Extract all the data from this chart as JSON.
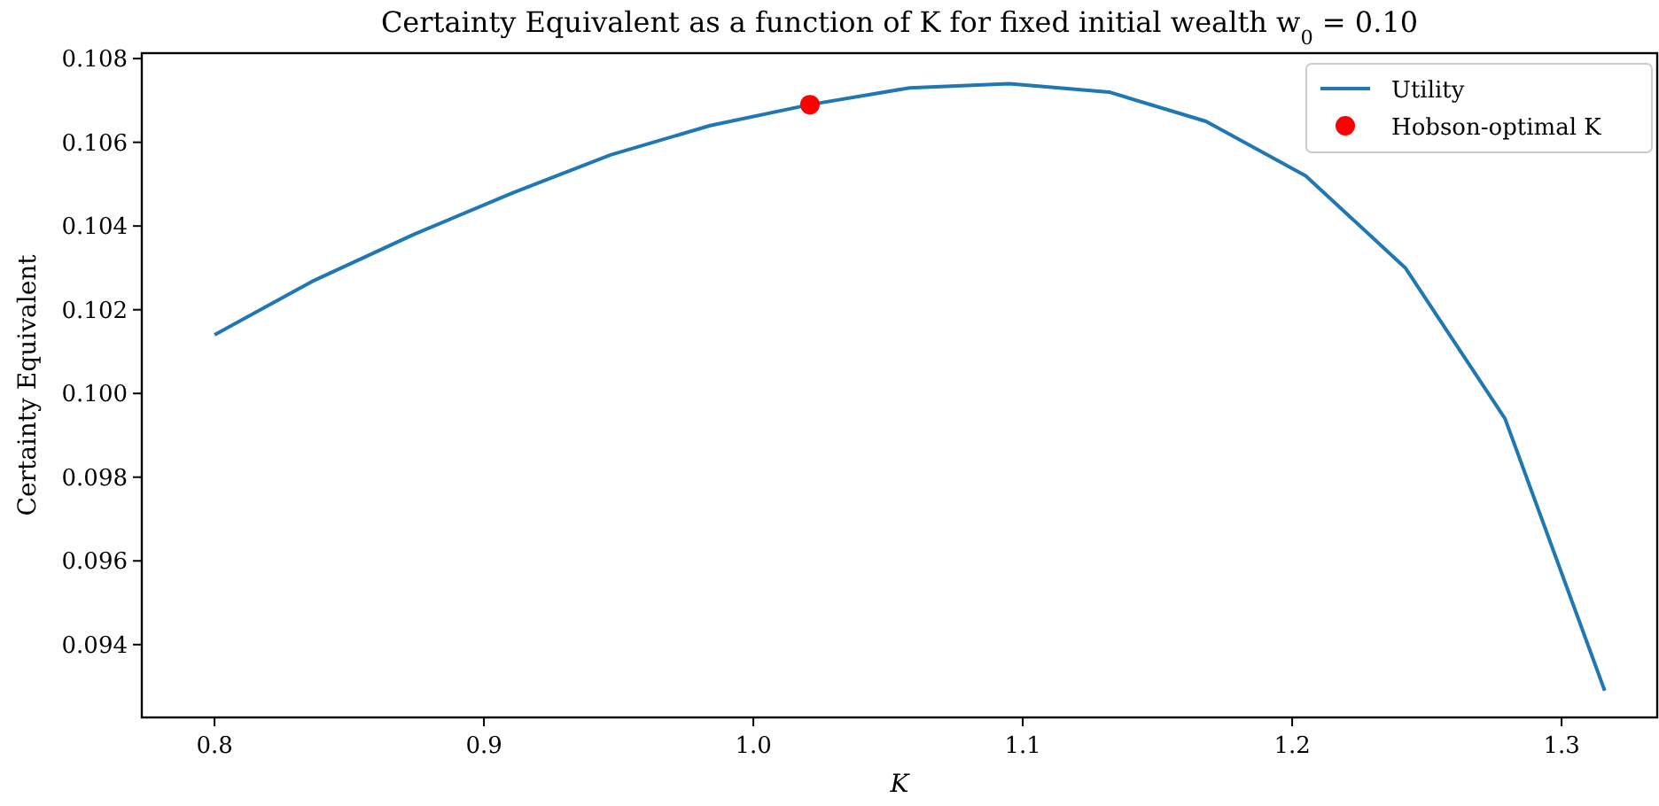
{
  "chart_data": {
    "type": "line",
    "title": "Certainty Equivalent as a function of K for fixed initial wealth w$_{0}$ = 0.10",
    "xlabel": "K",
    "ylabel": "Certainty Equivalent",
    "xlim": [
      0.773,
      1.3355
    ],
    "xticks": [
      0.8,
      0.9,
      {
        "value": 1.0,
        "label": "1.0"
      },
      1.1,
      1.2,
      1.3
    ],
    "ylim": [
      0.09226,
      0.10813
    ],
    "yticks": [
      0.094,
      0.096,
      0.098,
      {
        "value": 0.1,
        "label": "0.100"
      },
      0.102,
      0.104,
      0.106,
      0.108
    ],
    "grid": false,
    "legend": "top right",
    "series": [
      {
        "name": "Utility",
        "color": "#1f77b4",
        "marker": "none",
        "x": [
          0.8,
          0.837,
          0.874,
          0.911,
          0.947,
          0.984,
          1.021,
          1.058,
          1.095,
          1.132,
          1.168,
          1.205,
          1.242,
          1.279,
          1.316
        ],
        "values": [
          0.1014,
          0.1027,
          0.1038,
          0.1048,
          0.1057,
          0.1064,
          0.1069,
          0.1073,
          0.1074,
          0.1072,
          0.1065,
          0.1052,
          0.103,
          0.0994,
          0.0929
        ]
      },
      {
        "name": "Hobson-optimal K",
        "type": "scatter",
        "color": "#ff0000",
        "marker": "circle",
        "x": [
          1.021
        ],
        "values": [
          0.1069
        ]
      }
    ]
  }
}
